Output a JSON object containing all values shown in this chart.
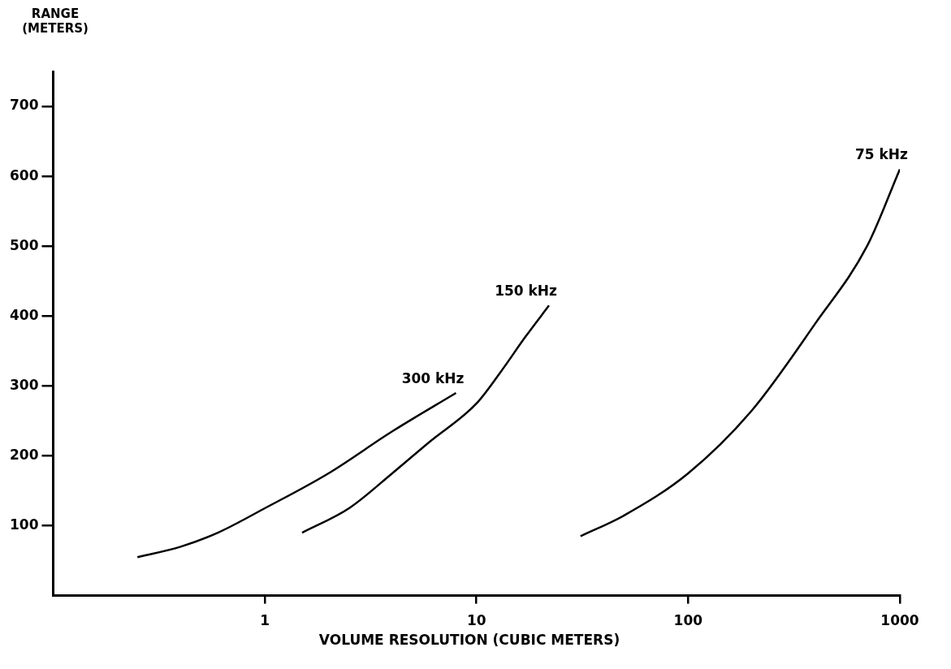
{
  "chart_data": {
    "type": "line",
    "xlabel": "VOLUME RESOLUTION (CUBIC METERS)",
    "ylabel": "RANGE (METERS)",
    "log": "x",
    "xlim": [
      0.1,
      1000
    ],
    "xticks": [
      1,
      10,
      100,
      1000
    ],
    "ylim": [
      0,
      750
    ],
    "yticks": [
      100,
      200,
      300,
      400,
      500,
      600,
      700
    ],
    "grid": false,
    "legend": false,
    "marker": "none",
    "line_style": "solid",
    "series": [
      {
        "name": "300 kHz",
        "color": "#000000",
        "x": [
          0.25,
          0.4,
          0.6,
          1,
          2,
          4,
          8
        ],
        "values": [
          55,
          70,
          90,
          125,
          175,
          235,
          290
        ]
      },
      {
        "name": "150 kHz",
        "color": "#000000",
        "x": [
          1.5,
          2.5,
          4,
          6,
          10,
          13,
          17,
          22
        ],
        "values": [
          90,
          125,
          175,
          220,
          275,
          320,
          370,
          415
        ]
      },
      {
        "name": "75 kHz",
        "color": "#000000",
        "x": [
          31,
          50,
          100,
          200,
          400,
          700,
          1000
        ],
        "values": [
          85,
          115,
          175,
          265,
          390,
          500,
          610
        ]
      }
    ]
  }
}
